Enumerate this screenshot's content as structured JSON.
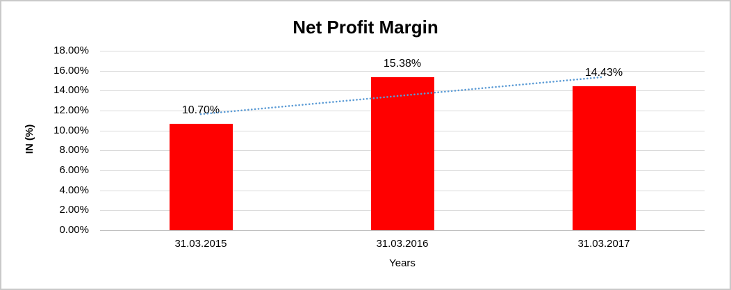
{
  "chart_data": {
    "type": "bar",
    "title": "Net Profit Margin",
    "xlabel": "Years",
    "ylabel": "IN (%)",
    "categories": [
      "31.03.2015",
      "31.03.2016",
      "31.03.2017"
    ],
    "values": [
      10.7,
      15.38,
      14.43
    ],
    "value_labels": [
      "10.70%",
      "15.38%",
      "14.43%"
    ],
    "ylim": [
      0,
      18
    ],
    "ytick_step": 2,
    "ytick_labels": [
      "0.00%",
      "2.00%",
      "4.00%",
      "6.00%",
      "8.00%",
      "10.00%",
      "12.00%",
      "14.00%",
      "16.00%",
      "18.00%"
    ],
    "grid": true,
    "legend": "none",
    "bar_color": "#ff0000",
    "gridline_color": "#d9d9d9",
    "axis_line_color": "#bfbfbf",
    "trendline": {
      "type": "linear",
      "style": "dotted",
      "color": "#5b9bd5",
      "start_value": 11.64,
      "end_value": 15.37
    }
  }
}
